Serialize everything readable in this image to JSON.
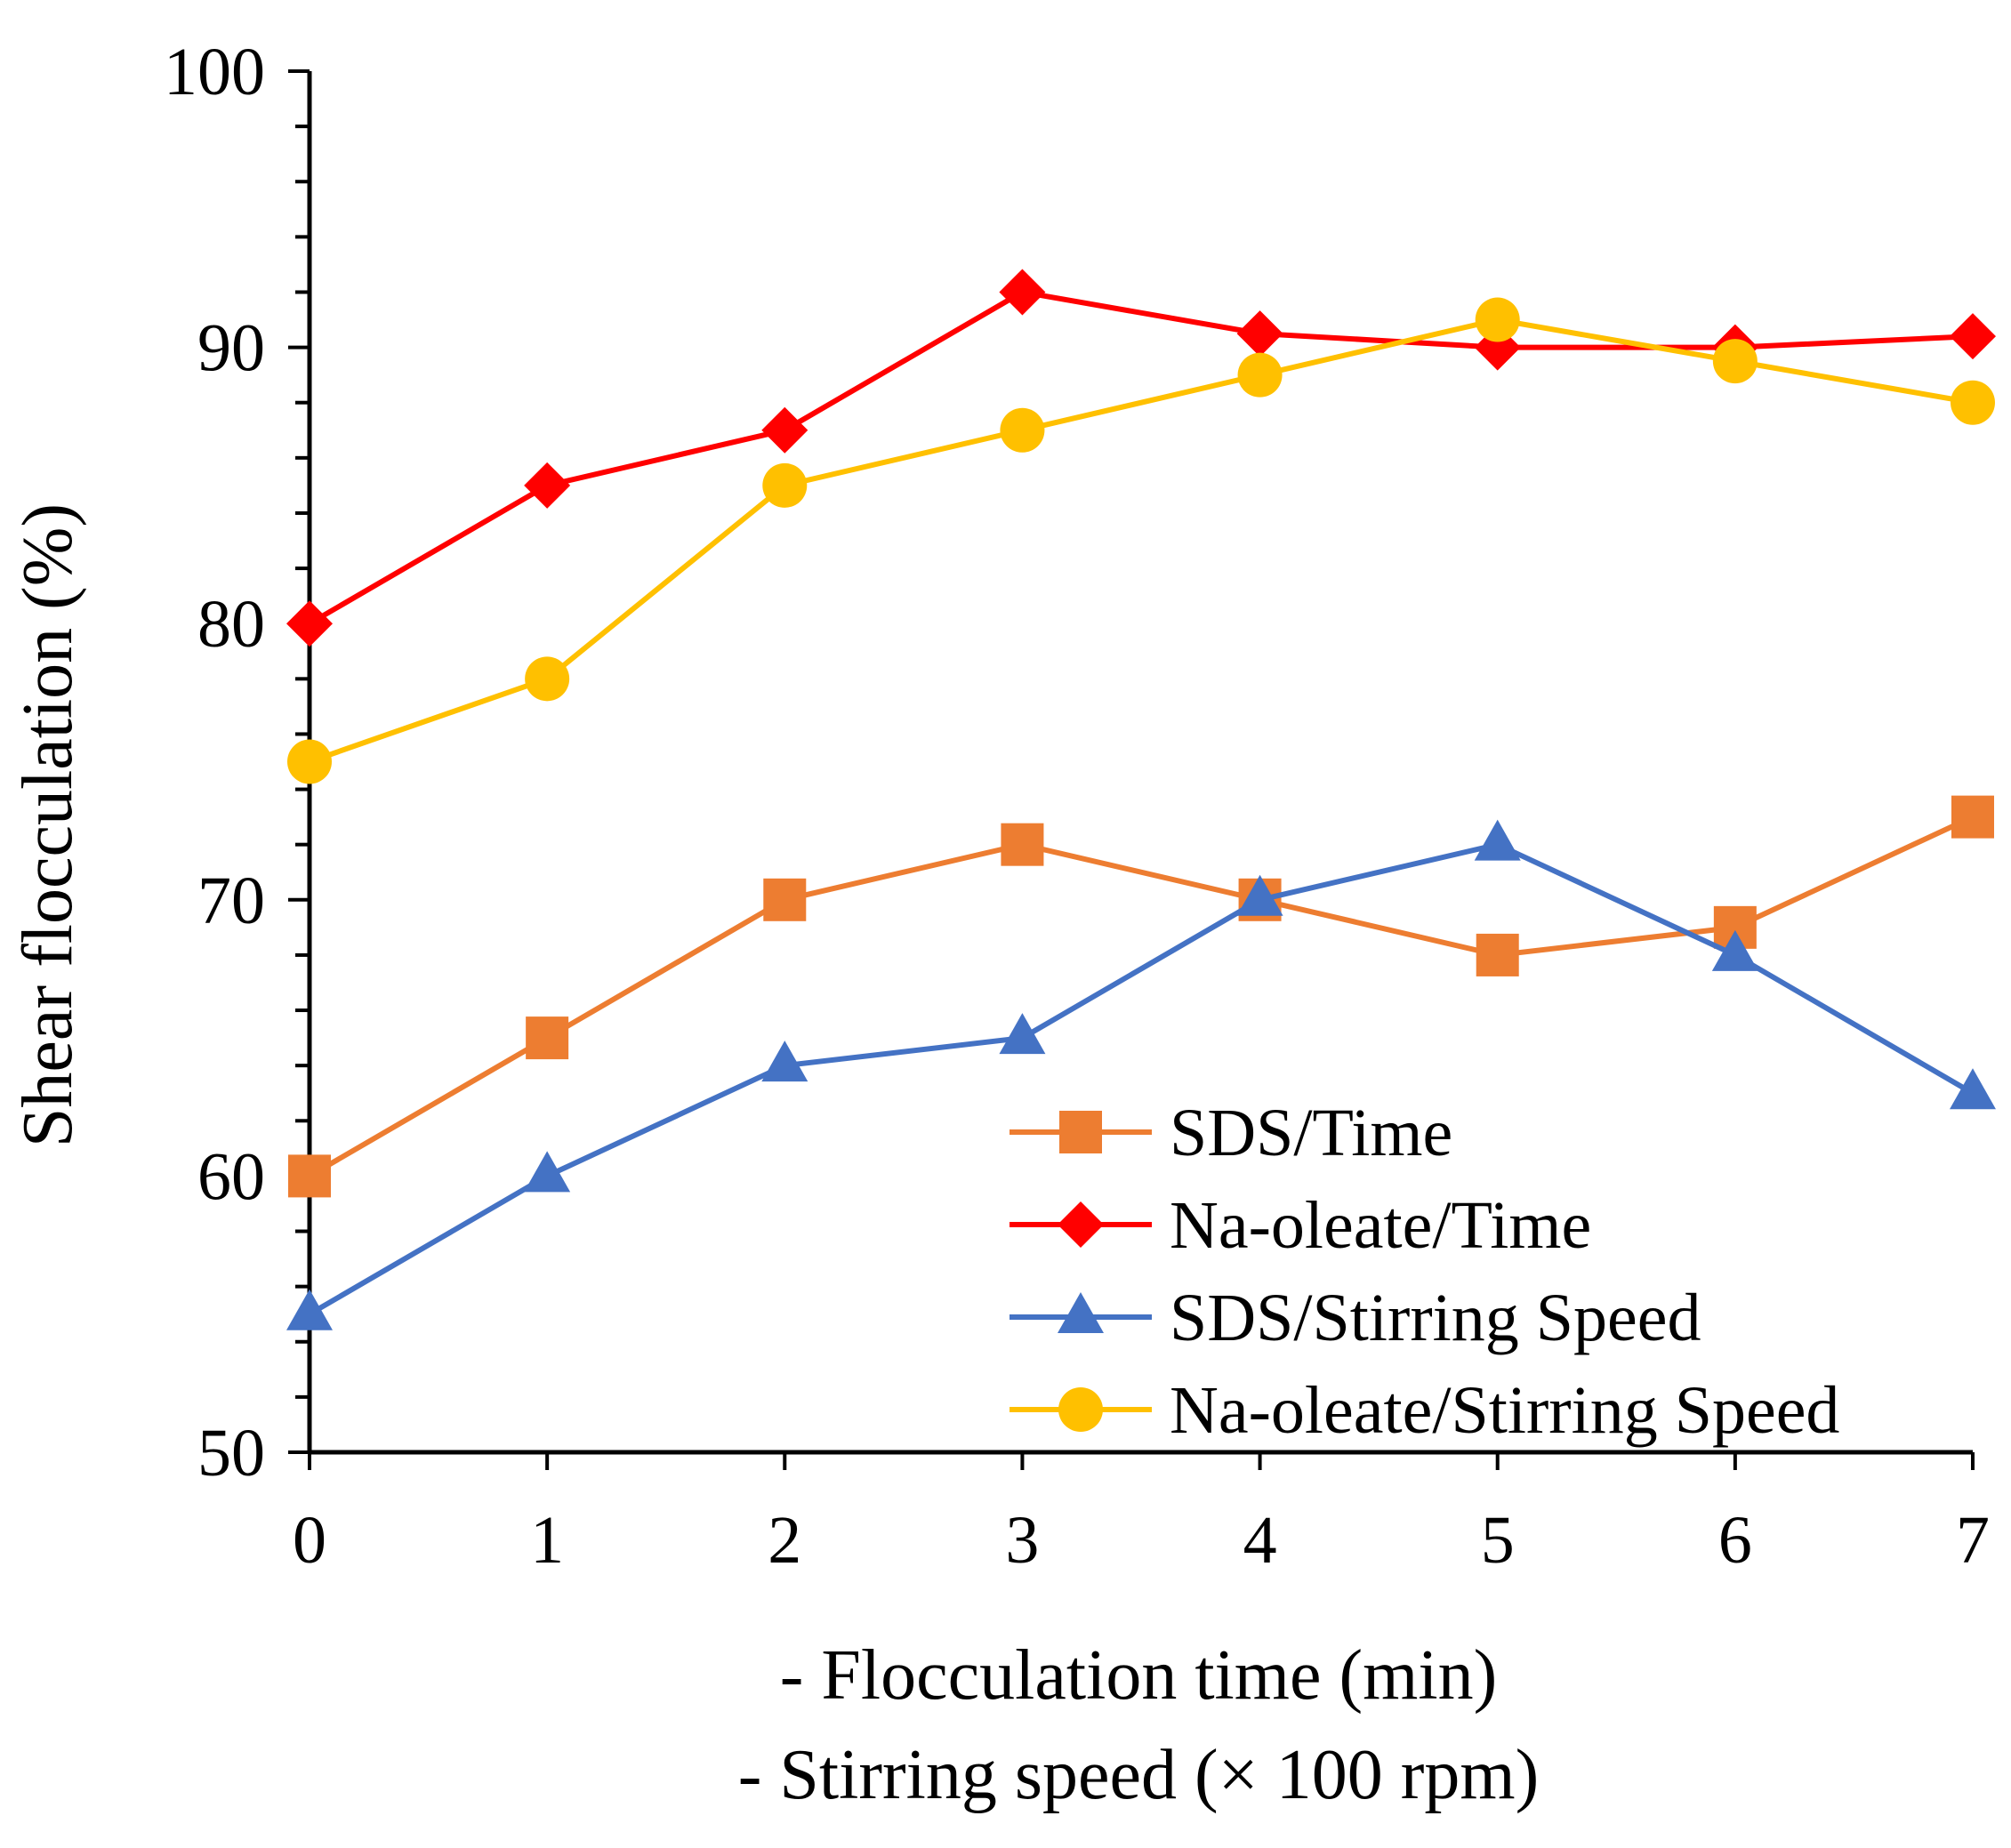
{
  "chart_data": {
    "type": "line",
    "title": "",
    "ylabel": "Shear flocculation (%)",
    "xlabel_lines": [
      "- Flocculation time (min)",
      "- Stirring speed (× 100 rpm)"
    ],
    "x": [
      0,
      1,
      2,
      3,
      4,
      5,
      6,
      7
    ],
    "xlim": [
      0,
      7
    ],
    "ylim": [
      50,
      100
    ],
    "x_ticks": [
      0,
      1,
      2,
      3,
      4,
      5,
      6,
      7
    ],
    "y_ticks": [
      50,
      60,
      70,
      80,
      90,
      100
    ],
    "grid": false,
    "legend_position": "lower-right",
    "series": [
      {
        "name": "SDS/Time",
        "color": "#ED7D31",
        "marker": "square",
        "values": [
          60,
          65,
          70,
          72,
          70,
          68,
          69,
          73
        ]
      },
      {
        "name": "Na-oleate/Time",
        "color": "#FF0000",
        "marker": "diamond",
        "values": [
          80,
          85,
          87,
          92,
          90.5,
          90,
          90,
          90.4
        ]
      },
      {
        "name": "SDS/Stirring Speed",
        "color": "#4472C4",
        "marker": "triangle",
        "values": [
          55,
          60,
          64,
          65,
          70,
          72,
          68,
          63
        ]
      },
      {
        "name": "Na-oleate/Stirring Speed",
        "color": "#FFC000",
        "marker": "circle",
        "values": [
          75,
          78,
          85,
          87,
          89,
          91,
          89.5,
          88
        ]
      }
    ]
  }
}
